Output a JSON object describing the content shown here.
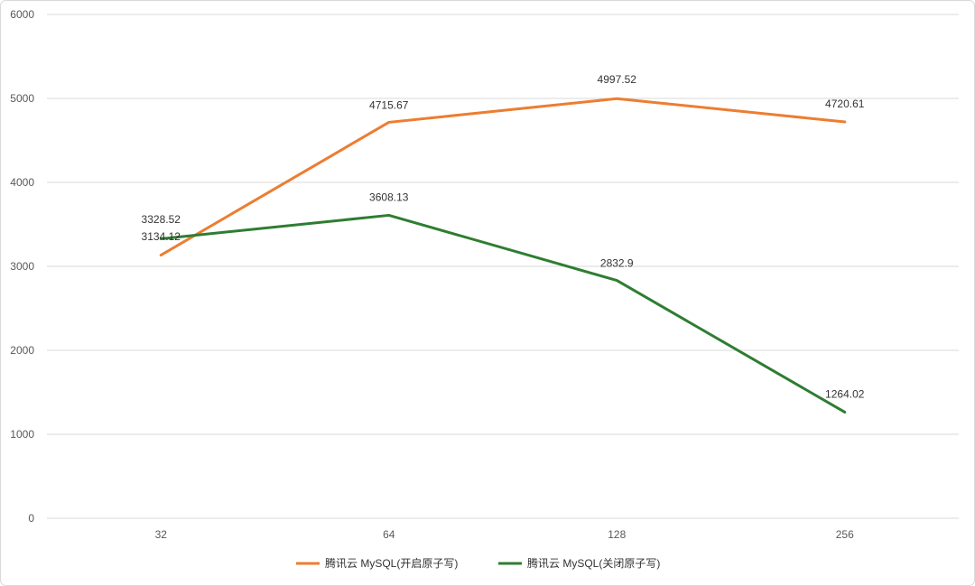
{
  "chart_data": {
    "type": "line",
    "title": "",
    "xlabel": "",
    "ylabel": "",
    "categories": [
      "32",
      "64",
      "128",
      "256"
    ],
    "ylim": [
      0,
      6000
    ],
    "yticks": [
      "0",
      "1000",
      "2000",
      "3000",
      "4000",
      "5000",
      "6000"
    ],
    "grid": true,
    "legend_position": "bottom",
    "series": [
      {
        "name": "腾讯云 MySQL(开启原子写)",
        "color": "#ED7D31",
        "values": [
          3134.12,
          4715.67,
          4997.52,
          4720.61
        ],
        "labels": [
          "3134.12",
          "4715.67",
          "4997.52",
          "4720.61"
        ]
      },
      {
        "name": "腾讯云 MySQL(关闭原子写)",
        "color": "#2E7D32",
        "values": [
          3328.52,
          3608.13,
          2832.9,
          1264.02
        ],
        "labels": [
          "3328.52",
          "3608.13",
          "2832.9",
          "1264.02"
        ]
      }
    ]
  }
}
